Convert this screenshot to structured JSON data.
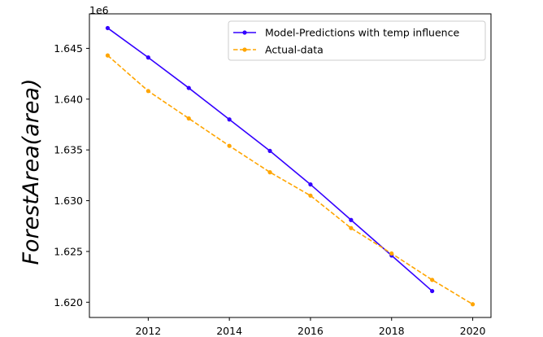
{
  "chart_data": {
    "type": "line",
    "title": "",
    "xlabel": "",
    "ylabel": "ForestArea(area)",
    "y_offset_label": "1e6",
    "xlim": [
      2010.55,
      2020.45
    ],
    "ylim": [
      1.6185,
      1.6484
    ],
    "x_ticks": [
      2012,
      2014,
      2016,
      2018,
      2020
    ],
    "y_ticks": [
      1.62,
      1.625,
      1.63,
      1.635,
      1.64,
      1.645
    ],
    "x_tick_labels": [
      "2012",
      "2014",
      "2016",
      "2018",
      "2020"
    ],
    "y_tick_labels": [
      "1.620",
      "1.625",
      "1.630",
      "1.635",
      "1.640",
      "1.645"
    ],
    "grid": false,
    "legend_position": "top-right",
    "series": [
      {
        "name": "Model-Predictions with temp influence",
        "color": "#3300ff",
        "style": "solid",
        "marker": "circle",
        "x": [
          2011,
          2012,
          2013,
          2014,
          2015,
          2016,
          2017,
          2018,
          2019
        ],
        "y": [
          1.647,
          1.6441,
          1.6411,
          1.638,
          1.6349,
          1.6316,
          1.6281,
          1.6246,
          1.6211
        ]
      },
      {
        "name": "Actual-data",
        "color": "#ffa500",
        "style": "dashed",
        "marker": "circle",
        "x": [
          2011,
          2012,
          2013,
          2014,
          2015,
          2016,
          2017,
          2018,
          2019,
          2020
        ],
        "y": [
          1.6443,
          1.6408,
          1.6381,
          1.6354,
          1.6328,
          1.6305,
          1.6273,
          1.6248,
          1.6222,
          1.6198
        ]
      }
    ]
  }
}
